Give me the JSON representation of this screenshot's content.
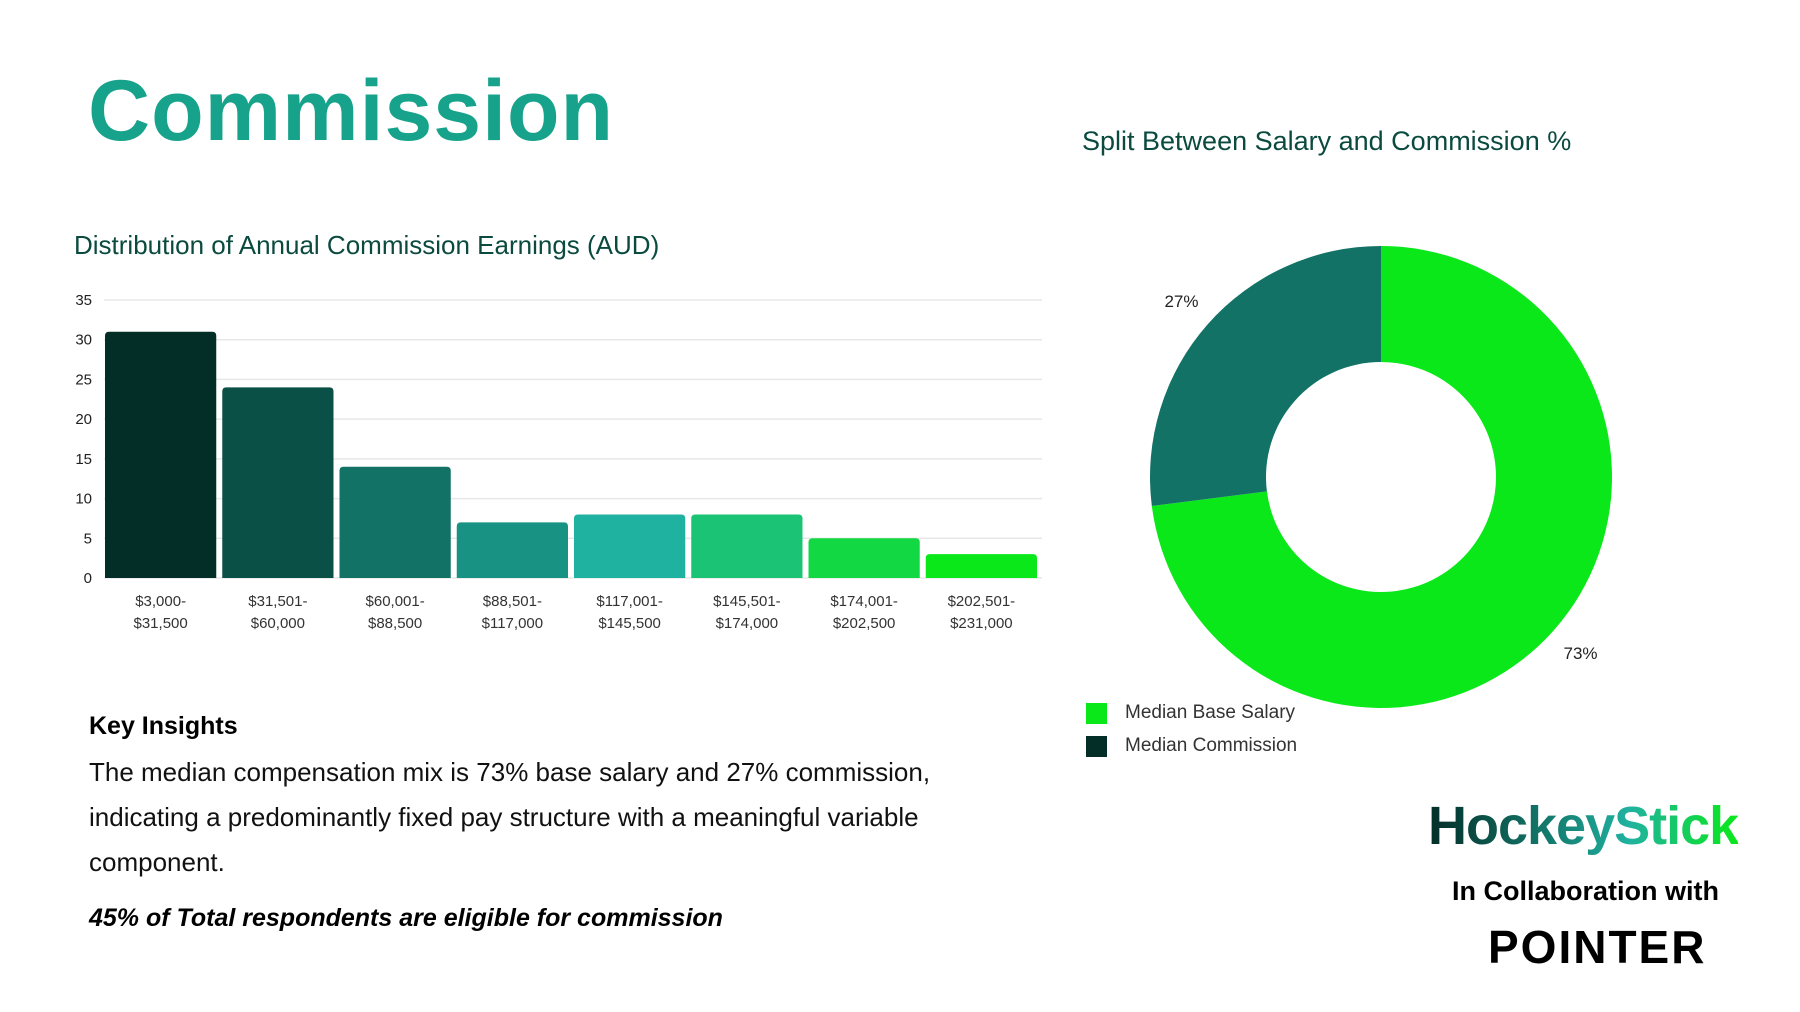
{
  "page": {
    "title": "Commission",
    "key_insights": {
      "heading": "Key Insights",
      "body": "The median compensation mix is 73% base salary and 27% commission, indicating a predominantly fixed pay structure with a meaningful variable component.",
      "note": "45% of Total respondents are eligible for commission"
    },
    "branding": {
      "logo": "HockeyStick",
      "collab": "In Collaboration with",
      "partner": "POINTER"
    }
  },
  "chart_data": [
    {
      "type": "bar",
      "title": "Distribution of Annual Commission Earnings (AUD)",
      "categories": [
        [
          "$3,000-",
          "$31,500"
        ],
        [
          "$31,501-",
          "$60,000"
        ],
        [
          "$60,001-",
          "$88,500"
        ],
        [
          "$88,501-",
          "$117,000"
        ],
        [
          "$117,001-",
          "$145,500"
        ],
        [
          "$145,501-",
          "$174,000"
        ],
        [
          "$174,001-",
          "$202,500"
        ],
        [
          "$202,501-",
          "$231,000"
        ]
      ],
      "values": [
        31,
        24,
        14,
        7,
        8,
        8,
        5,
        3
      ],
      "colors": [
        "#032d27",
        "#0b5047",
        "#127266",
        "#189283",
        "#20b2a0",
        "#1bc474",
        "#12d844",
        "#0ae81a"
      ],
      "ylim": [
        0,
        35
      ],
      "yticks": [
        0,
        5,
        10,
        15,
        20,
        25,
        30,
        35
      ],
      "grid": true,
      "xlabel": "",
      "ylabel": ""
    },
    {
      "type": "pie",
      "donut": true,
      "title": "Split Between Salary and Commission %",
      "slices": [
        {
          "name": "Median Base Salary",
          "value": 73,
          "label": "73%",
          "color": "#0ae81a"
        },
        {
          "name": "Median Commission",
          "value": 27,
          "label": "27%",
          "color": "#127266",
          "legend_color": "#032d27"
        }
      ],
      "legend": "bottom-left"
    }
  ]
}
